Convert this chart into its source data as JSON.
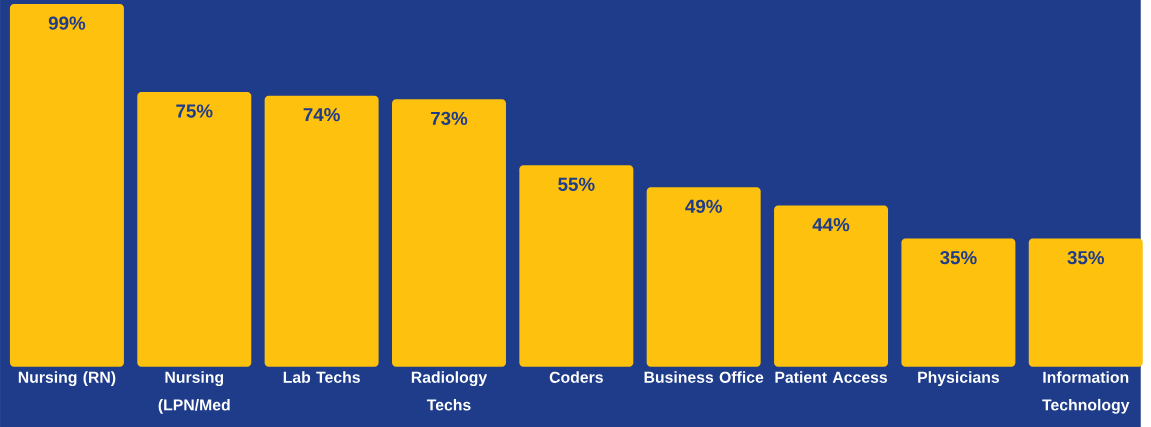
{
  "chart_data": {
    "type": "bar",
    "categories": [
      "Nursing (RN)",
      "Nursing (LPN/Med",
      "Lab Techs",
      "Radiology Techs",
      "Coders",
      "Business Office",
      "Patient Access",
      "Physicians",
      "Information Technology"
    ],
    "values": [
      99,
      75,
      74,
      73,
      55,
      49,
      44,
      35,
      35
    ],
    "value_labels": [
      "99%",
      "75%",
      "74%",
      "73%",
      "55%",
      "49%",
      "44%",
      "35%",
      "35%"
    ],
    "color": "#fec10d"
  }
}
